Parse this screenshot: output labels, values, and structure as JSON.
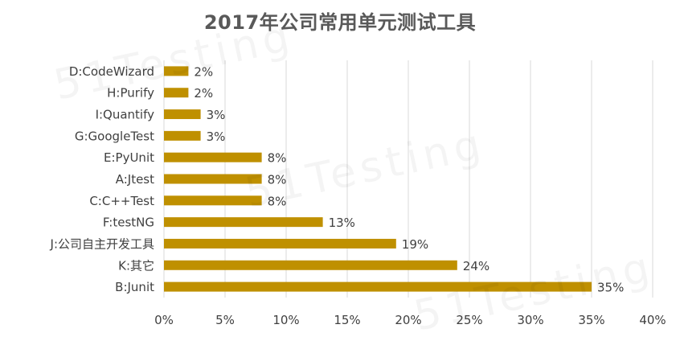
{
  "chart_data": {
    "type": "bar",
    "orientation": "horizontal",
    "title": "2017年公司常用单元测试工具",
    "categories": [
      "D:CodeWizard",
      "H:Purify",
      "I:Quantify",
      "G:GoogleTest",
      "E:PyUnit",
      "A:Jtest",
      "C:C++Test",
      "F:testNG",
      "J:公司自主开发工具",
      "K:其它",
      "B:Junit"
    ],
    "values": [
      2,
      2,
      3,
      3,
      8,
      8,
      8,
      13,
      19,
      24,
      35
    ],
    "value_labels": [
      "2%",
      "2%",
      "3%",
      "3%",
      "8%",
      "8%",
      "8%",
      "13%",
      "19%",
      "24%",
      "35%"
    ],
    "xlim": [
      0,
      40
    ],
    "x_ticks": [
      0,
      5,
      10,
      15,
      20,
      25,
      30,
      35,
      40
    ],
    "x_tick_labels": [
      "0%",
      "5%",
      "10%",
      "15%",
      "20%",
      "25%",
      "30%",
      "35%",
      "40%"
    ],
    "xlabel": "",
    "ylabel": "",
    "grid": "vertical",
    "legend": "none",
    "bar_color": "#BF9000",
    "grid_color": "#D9D9D9",
    "text_color": "#404040",
    "watermark": "51Testing"
  }
}
